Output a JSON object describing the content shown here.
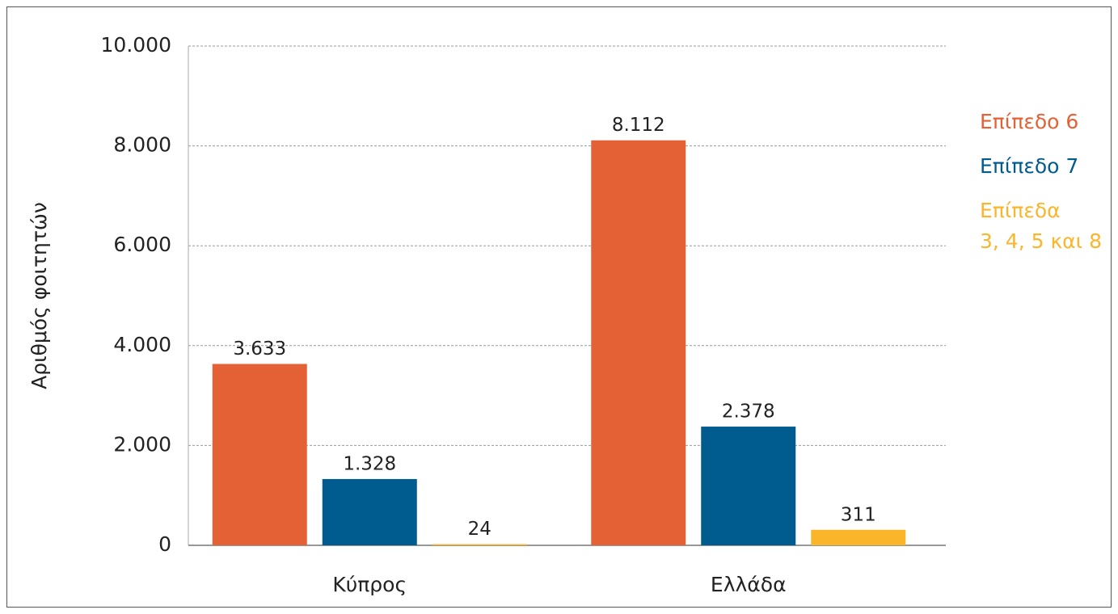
{
  "chart_data": {
    "type": "bar",
    "y_label": "Αριθμός φοιτητών",
    "categories": [
      "Κύπρος",
      "Ελλάδα"
    ],
    "series": [
      {
        "name": "Επίπεδο 6",
        "color": "#e36135",
        "values": [
          3633,
          8112
        ],
        "value_labels": [
          "3.633",
          "8.112"
        ]
      },
      {
        "name": "Επίπεδο 7",
        "color": "#005b8f",
        "values": [
          1328,
          2378
        ],
        "value_labels": [
          "1.328",
          "2.378"
        ]
      },
      {
        "name": "Επίπεδα\n3, 4, 5 και 8",
        "color": "#fbb52b",
        "values": [
          24,
          311
        ],
        "value_labels": [
          "24",
          "311"
        ]
      }
    ],
    "ylim": [
      0,
      10000
    ],
    "yticks": [
      0,
      {
        "value": 2000,
        "label": "2.000"
      },
      {
        "value": 4000,
        "label": "4.000"
      },
      {
        "value": 6000,
        "label": "6.000"
      },
      {
        "value": 8000,
        "label": "8.000"
      },
      {
        "value": 10000,
        "label": "10.000"
      }
    ],
    "grid": true,
    "legend": "right"
  }
}
